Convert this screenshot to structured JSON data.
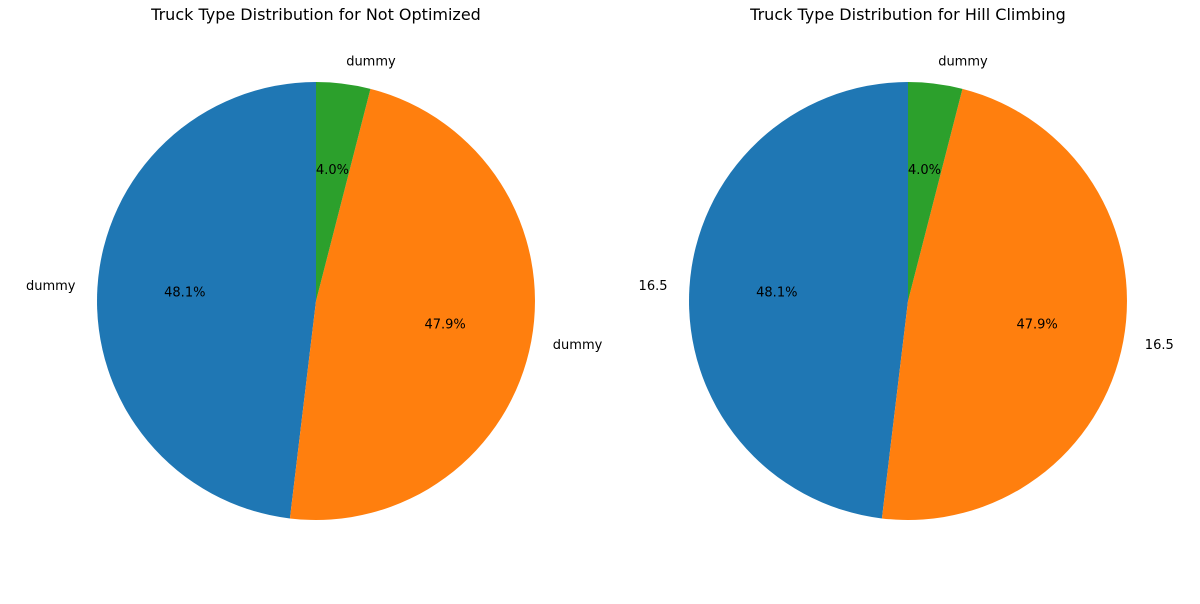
{
  "chart_data": [
    {
      "type": "pie",
      "title": "Truck Type Distribution for Not Optimized",
      "start_angle_deg": 90,
      "direction": "counterclockwise",
      "slices": [
        {
          "label": "dummy",
          "value": 48.1,
          "pct_label": "48.1%",
          "color": "#1f77b4"
        },
        {
          "label": "dummy",
          "value": 47.9,
          "pct_label": "47.9%",
          "color": "#ff7f0e"
        },
        {
          "label": "dummy",
          "value": 4.0,
          "pct_label": "4.0%",
          "color": "#2ca02c"
        }
      ]
    },
    {
      "type": "pie",
      "title": "Truck Type Distribution for Hill Climbing",
      "start_angle_deg": 90,
      "direction": "counterclockwise",
      "slices": [
        {
          "label": "16.5",
          "value": 48.1,
          "pct_label": "48.1%",
          "color": "#1f77b4"
        },
        {
          "label": "16.5",
          "value": 47.9,
          "pct_label": "47.9%",
          "color": "#ff7f0e"
        },
        {
          "label": "dummy",
          "value": 4.0,
          "pct_label": "4.0%",
          "color": "#2ca02c"
        }
      ]
    }
  ]
}
